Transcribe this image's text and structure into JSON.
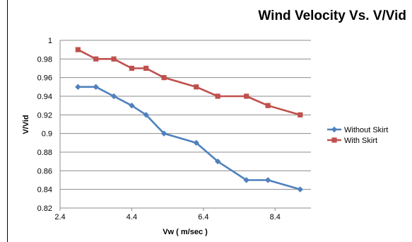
{
  "chart_data": {
    "type": "line",
    "title": "Wind Velocity Vs. V/Vid",
    "xlabel": "Vw ( m/sec )",
    "ylabel": "V/Vid",
    "xlim": [
      2.4,
      9.4
    ],
    "ylim": [
      0.82,
      1.0
    ],
    "x_ticks": [
      2.4,
      4.4,
      6.4,
      8.4
    ],
    "x_tick_labels": [
      "2.4",
      "4.4",
      "6.4",
      "8.4"
    ],
    "y_ticks": [
      0.82,
      0.84,
      0.86,
      0.88,
      0.9,
      0.92,
      0.94,
      0.96,
      0.98,
      1.0
    ],
    "y_tick_labels": [
      "0.82",
      "0.84",
      "0.86",
      "0.88",
      "0.9",
      "0.92",
      "0.94",
      "0.96",
      "0.98",
      "1"
    ],
    "grid": "horizontal",
    "legend_position": "right",
    "series": [
      {
        "name": "Without Skirt",
        "color": "#4F81BD",
        "marker": "diamond",
        "x": [
          2.9,
          3.4,
          3.9,
          4.4,
          4.8,
          5.3,
          6.2,
          6.8,
          7.6,
          8.2,
          9.1
        ],
        "values": [
          0.95,
          0.95,
          0.94,
          0.93,
          0.92,
          0.9,
          0.89,
          0.87,
          0.85,
          0.85,
          0.84
        ]
      },
      {
        "name": "With Skirt",
        "color": "#C0504D",
        "marker": "square",
        "x": [
          2.9,
          3.4,
          3.9,
          4.4,
          4.8,
          5.3,
          6.2,
          6.8,
          7.6,
          8.2,
          9.1
        ],
        "values": [
          0.99,
          0.98,
          0.98,
          0.97,
          0.97,
          0.96,
          0.95,
          0.94,
          0.94,
          0.93,
          0.92
        ]
      }
    ]
  }
}
